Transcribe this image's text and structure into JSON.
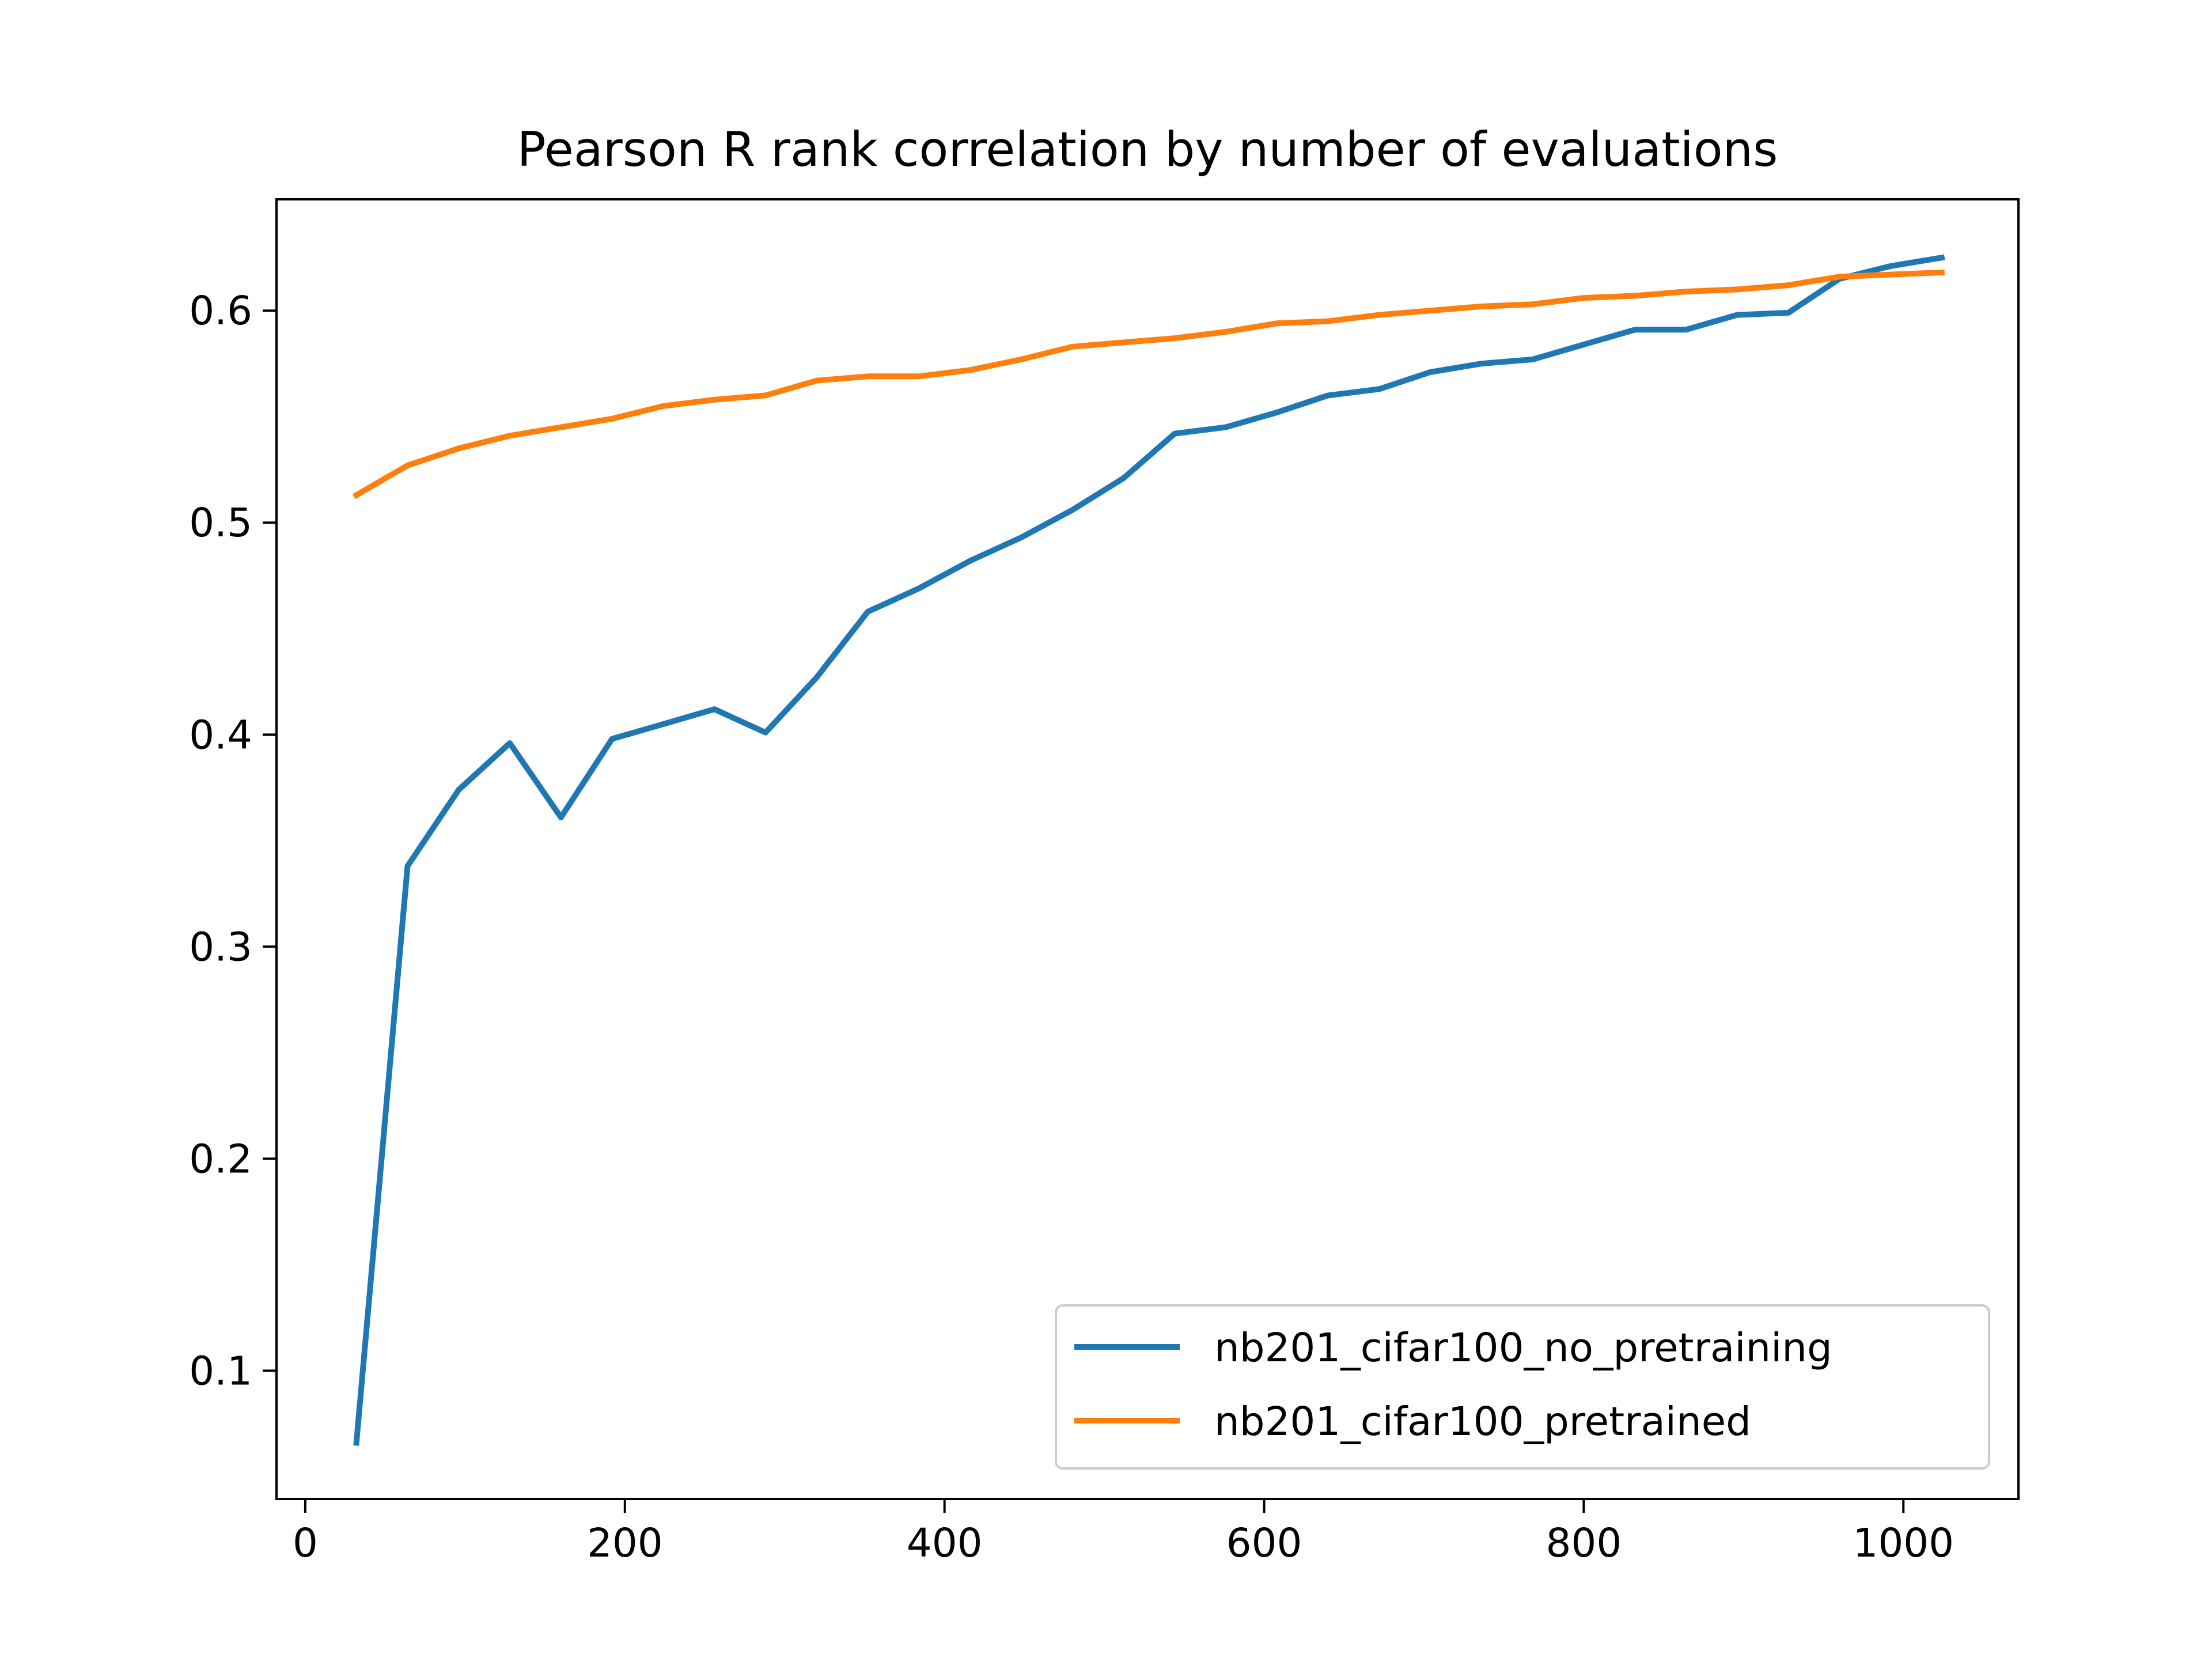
{
  "chart_data": {
    "type": "line",
    "title": "Pearson R rank correlation by number of evaluations",
    "xlabel": "",
    "ylabel": "",
    "xlim": [
      -18,
      1072
    ],
    "ylim": [
      0.0395,
      0.6525
    ],
    "xticks": [
      0,
      200,
      400,
      600,
      800,
      1000
    ],
    "yticks": [
      0.1,
      0.2,
      0.3,
      0.4,
      0.5,
      0.6
    ],
    "xtick_labels": [
      "0",
      "200",
      "400",
      "600",
      "800",
      "1000"
    ],
    "ytick_labels": [
      "0.1",
      "0.2",
      "0.3",
      "0.4",
      "0.5",
      "0.6"
    ],
    "grid": false,
    "legend_position": "lower-right",
    "x": [
      32,
      64,
      96,
      128,
      160,
      192,
      224,
      256,
      288,
      320,
      352,
      384,
      416,
      448,
      480,
      512,
      544,
      576,
      608,
      640,
      672,
      704,
      736,
      768,
      800,
      832,
      864,
      896,
      928,
      960,
      992,
      1024
    ],
    "series": [
      {
        "name": "nb201_cifar100_no_pretraining",
        "color": "#1f77b4",
        "values": [
          0.066,
          0.338,
          0.374,
          0.396,
          0.361,
          0.398,
          0.405,
          0.412,
          0.401,
          0.427,
          0.458,
          0.469,
          0.482,
          0.493,
          0.506,
          0.521,
          0.542,
          0.545,
          0.552,
          0.56,
          0.563,
          0.571,
          0.575,
          0.577,
          0.584,
          0.591,
          0.591,
          0.598,
          0.599,
          0.615,
          0.621,
          0.625
        ]
      },
      {
        "name": "nb201_cifar100_pretrained",
        "color": "#ff7f0e",
        "values": [
          0.513,
          0.527,
          0.535,
          0.541,
          0.545,
          0.549,
          0.555,
          0.558,
          0.56,
          0.567,
          0.569,
          0.569,
          0.572,
          0.577,
          0.583,
          0.585,
          0.587,
          0.59,
          0.594,
          0.595,
          0.598,
          0.6,
          0.602,
          0.603,
          0.606,
          0.607,
          0.609,
          0.61,
          0.612,
          0.616,
          0.617,
          0.618
        ]
      }
    ]
  }
}
